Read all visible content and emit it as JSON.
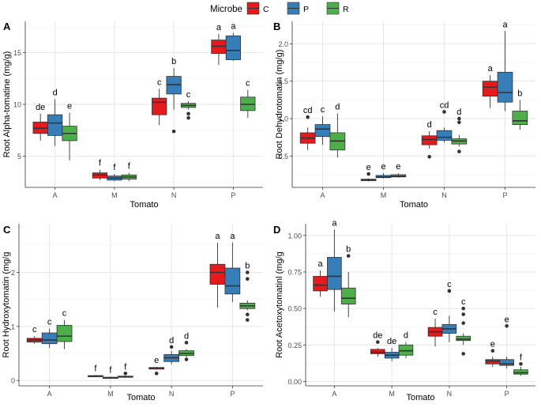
{
  "legend": {
    "title": "Microbe",
    "items": [
      {
        "label": "C",
        "color": "#e41a1c"
      },
      {
        "label": "P",
        "color": "#377eb8"
      },
      {
        "label": "R",
        "color": "#4daf4a"
      }
    ]
  },
  "chart_data": [
    {
      "type": "boxplot",
      "panel": "A",
      "ylabel": "Root Alpha-tomatine (mg/g)",
      "xlabel": "Tomato",
      "categories": [
        "A",
        "M",
        "N",
        "P"
      ],
      "ylim": [
        2.0,
        18.0
      ],
      "yticks": [
        5,
        10,
        15
      ],
      "ytick_labels": [
        "5",
        "10",
        "15"
      ],
      "grid": true,
      "boxes": [
        {
          "category": "A",
          "microbe": "C",
          "whislo": 6.5,
          "q1": 7.2,
          "med": 7.7,
          "q3": 8.3,
          "whishi": 9.1,
          "outliers": [],
          "letter": "de"
        },
        {
          "category": "A",
          "microbe": "P",
          "whislo": 6.0,
          "q1": 7.0,
          "med": 8.2,
          "q3": 9.0,
          "whishi": 10.5,
          "outliers": [],
          "letter": "d"
        },
        {
          "category": "A",
          "microbe": "R",
          "whislo": 4.6,
          "q1": 6.5,
          "med": 7.2,
          "q3": 7.9,
          "whishi": 9.2,
          "outliers": [],
          "letter": "e"
        },
        {
          "category": "M",
          "microbe": "C",
          "whislo": 2.7,
          "q1": 2.9,
          "med": 3.2,
          "q3": 3.4,
          "whishi": 3.7,
          "outliers": [],
          "letter": "f"
        },
        {
          "category": "M",
          "microbe": "P",
          "whislo": 2.6,
          "q1": 2.7,
          "med": 2.9,
          "q3": 3.1,
          "whishi": 3.3,
          "outliers": [],
          "letter": "f"
        },
        {
          "category": "M",
          "microbe": "R",
          "whislo": 2.6,
          "q1": 2.8,
          "med": 3.0,
          "q3": 3.2,
          "whishi": 3.4,
          "outliers": [],
          "letter": "f"
        },
        {
          "category": "N",
          "microbe": "C",
          "whislo": 8.0,
          "q1": 9.0,
          "med": 10.2,
          "q3": 10.6,
          "whishi": 11.5,
          "outliers": [],
          "letter": "c"
        },
        {
          "category": "N",
          "microbe": "P",
          "whislo": 9.5,
          "q1": 11.0,
          "med": 11.9,
          "q3": 12.7,
          "whishi": 13.5,
          "outliers": [
            7.4
          ],
          "letter": "b"
        },
        {
          "category": "N",
          "microbe": "R",
          "whislo": 9.5,
          "q1": 9.7,
          "med": 9.9,
          "q3": 10.1,
          "whishi": 10.3,
          "outliers": [
            9.1,
            8.7
          ],
          "letter": "c"
        },
        {
          "category": "P",
          "microbe": "C",
          "whislo": 13.8,
          "q1": 14.9,
          "med": 15.6,
          "q3": 16.2,
          "whishi": 16.8,
          "outliers": [],
          "letter": "a"
        },
        {
          "category": "P",
          "microbe": "P",
          "whislo": 14.2,
          "q1": 14.3,
          "med": 15.2,
          "q3": 16.6,
          "whishi": 16.9,
          "outliers": [],
          "letter": "a"
        },
        {
          "category": "P",
          "microbe": "R",
          "whislo": 8.7,
          "q1": 9.4,
          "med": 10.0,
          "q3": 10.7,
          "whishi": 11.4,
          "outliers": [],
          "letter": "c"
        }
      ]
    },
    {
      "type": "boxplot",
      "panel": "B",
      "ylabel": "Root Dehydrotomatin (mg/g)",
      "xlabel": "Tomato",
      "categories": [
        "A",
        "M",
        "N",
        "P"
      ],
      "ylim": [
        0.08,
        2.3
      ],
      "yticks": [
        0.5,
        1.0,
        1.5,
        2.0
      ],
      "ytick_labels": [
        "0.5",
        "1.0",
        "1.5",
        "2.0"
      ],
      "grid": true,
      "boxes": [
        {
          "category": "A",
          "microbe": "C",
          "whislo": 0.58,
          "q1": 0.67,
          "med": 0.74,
          "q3": 0.81,
          "whishi": 0.88,
          "outliers": [
            1.02
          ],
          "letter": "cd"
        },
        {
          "category": "A",
          "microbe": "P",
          "whislo": 0.65,
          "q1": 0.76,
          "med": 0.86,
          "q3": 0.92,
          "whishi": 1.03,
          "outliers": [],
          "letter": "c"
        },
        {
          "category": "A",
          "microbe": "R",
          "whislo": 0.48,
          "q1": 0.58,
          "med": 0.7,
          "q3": 0.81,
          "whishi": 1.07,
          "outliers": [],
          "letter": "d"
        },
        {
          "category": "M",
          "microbe": "C",
          "whislo": 0.16,
          "q1": 0.17,
          "med": 0.18,
          "q3": 0.19,
          "whishi": 0.2,
          "outliers": [
            0.26
          ],
          "letter": "e"
        },
        {
          "category": "M",
          "microbe": "P",
          "whislo": 0.2,
          "q1": 0.21,
          "med": 0.22,
          "q3": 0.24,
          "whishi": 0.27,
          "outliers": [],
          "letter": "e"
        },
        {
          "category": "M",
          "microbe": "R",
          "whislo": 0.21,
          "q1": 0.22,
          "med": 0.23,
          "q3": 0.25,
          "whishi": 0.27,
          "outliers": [],
          "letter": "e"
        },
        {
          "category": "N",
          "microbe": "C",
          "whislo": 0.6,
          "q1": 0.65,
          "med": 0.72,
          "q3": 0.77,
          "whishi": 0.83,
          "outliers": [
            0.49
          ],
          "letter": "d"
        },
        {
          "category": "N",
          "microbe": "P",
          "whislo": 0.68,
          "q1": 0.71,
          "med": 0.75,
          "q3": 0.84,
          "whishi": 0.88,
          "outliers": [
            1.09
          ],
          "letter": "cd"
        },
        {
          "category": "N",
          "microbe": "R",
          "whislo": 0.63,
          "q1": 0.66,
          "med": 0.7,
          "q3": 0.73,
          "whishi": 0.78,
          "outliers": [
            1.0,
            0.95,
            0.56
          ],
          "letter": "d"
        },
        {
          "category": "P",
          "microbe": "C",
          "whislo": 1.14,
          "q1": 1.3,
          "med": 1.42,
          "q3": 1.5,
          "whishi": 1.58,
          "outliers": [],
          "letter": "a"
        },
        {
          "category": "P",
          "microbe": "P",
          "whislo": 1.1,
          "q1": 1.22,
          "med": 1.35,
          "q3": 1.62,
          "whishi": 2.17,
          "outliers": [],
          "letter": "a"
        },
        {
          "category": "P",
          "microbe": "R",
          "whislo": 0.85,
          "q1": 0.92,
          "med": 0.97,
          "q3": 1.1,
          "whishi": 1.25,
          "outliers": [],
          "letter": "b"
        }
      ]
    },
    {
      "type": "boxplot",
      "panel": "C",
      "ylabel": "Root Hydroxytomatin (mg/g",
      "xlabel": "Tomato",
      "categories": [
        "A",
        "M",
        "N",
        "P"
      ],
      "ylim": [
        -0.1,
        2.9
      ],
      "yticks": [
        0,
        1,
        2
      ],
      "ytick_labels": [
        "0",
        "1",
        "2"
      ],
      "grid": true,
      "boxes": [
        {
          "category": "A",
          "microbe": "C",
          "whislo": 0.68,
          "q1": 0.71,
          "med": 0.75,
          "q3": 0.78,
          "whishi": 0.82,
          "outliers": [],
          "letter": "c"
        },
        {
          "category": "A",
          "microbe": "P",
          "whislo": 0.6,
          "q1": 0.68,
          "med": 0.75,
          "q3": 0.88,
          "whishi": 0.96,
          "outliers": [],
          "letter": "c"
        },
        {
          "category": "A",
          "microbe": "R",
          "whislo": 0.58,
          "q1": 0.72,
          "med": 0.82,
          "q3": 1.02,
          "whishi": 1.12,
          "outliers": [],
          "letter": "c"
        },
        {
          "category": "M",
          "microbe": "C",
          "whislo": 0.06,
          "q1": 0.07,
          "med": 0.08,
          "q3": 0.09,
          "whishi": 0.1,
          "outliers": [],
          "letter": "f"
        },
        {
          "category": "M",
          "microbe": "P",
          "whislo": 0.03,
          "q1": 0.04,
          "med": 0.05,
          "q3": 0.06,
          "whishi": 0.07,
          "outliers": [],
          "letter": "f"
        },
        {
          "category": "M",
          "microbe": "R",
          "whislo": 0.05,
          "q1": 0.06,
          "med": 0.07,
          "q3": 0.08,
          "whishi": 0.09,
          "outliers": [
            0.13
          ],
          "letter": "f"
        },
        {
          "category": "N",
          "microbe": "C",
          "whislo": 0.2,
          "q1": 0.21,
          "med": 0.23,
          "q3": 0.24,
          "whishi": 0.25,
          "outliers": [
            0.13
          ],
          "letter": "e"
        },
        {
          "category": "N",
          "microbe": "P",
          "whislo": 0.3,
          "q1": 0.35,
          "med": 0.42,
          "q3": 0.48,
          "whishi": 0.55,
          "outliers": [
            0.62
          ],
          "letter": "d"
        },
        {
          "category": "N",
          "microbe": "R",
          "whislo": 0.43,
          "q1": 0.46,
          "med": 0.5,
          "q3": 0.55,
          "whishi": 0.58,
          "outliers": [
            0.7,
            0.39
          ],
          "letter": "d"
        },
        {
          "category": "P",
          "microbe": "C",
          "whislo": 1.35,
          "q1": 1.78,
          "med": 2.0,
          "q3": 2.15,
          "whishi": 2.55,
          "outliers": [],
          "letter": "a"
        },
        {
          "category": "P",
          "microbe": "P",
          "whislo": 1.45,
          "q1": 1.6,
          "med": 1.75,
          "q3": 2.08,
          "whishi": 2.55,
          "outliers": [],
          "letter": "a"
        },
        {
          "category": "P",
          "microbe": "R",
          "whislo": 1.3,
          "q1": 1.33,
          "med": 1.38,
          "q3": 1.43,
          "whishi": 1.48,
          "outliers": [
            2.0,
            1.88,
            1.22,
            1.12
          ],
          "letter": "b"
        }
      ]
    },
    {
      "type": "boxplot",
      "panel": "D",
      "ylabel": "Root Acetoxytomatinl (mg/g",
      "xlabel": "Tomato",
      "categories": [
        "A",
        "M",
        "N",
        "P"
      ],
      "ylim": [
        -0.03,
        1.08
      ],
      "yticks": [
        0.0,
        0.25,
        0.5,
        0.75,
        1.0
      ],
      "ytick_labels": [
        "0.00",
        "0.25",
        "0.50",
        "0.75",
        "1.00"
      ],
      "grid": true,
      "boxes": [
        {
          "category": "A",
          "microbe": "C",
          "whislo": 0.58,
          "q1": 0.62,
          "med": 0.66,
          "q3": 0.72,
          "whishi": 0.76,
          "outliers": [],
          "letter": "a"
        },
        {
          "category": "A",
          "microbe": "P",
          "whislo": 0.48,
          "q1": 0.63,
          "med": 0.72,
          "q3": 0.85,
          "whishi": 1.04,
          "outliers": [],
          "letter": "a"
        },
        {
          "category": "A",
          "microbe": "R",
          "whislo": 0.44,
          "q1": 0.53,
          "med": 0.57,
          "q3": 0.64,
          "whishi": 0.75,
          "outliers": [
            0.86
          ],
          "letter": "b"
        },
        {
          "category": "M",
          "microbe": "C",
          "whislo": 0.17,
          "q1": 0.19,
          "med": 0.2,
          "q3": 0.22,
          "whishi": 0.23,
          "outliers": [
            0.27
          ],
          "letter": "de"
        },
        {
          "category": "M",
          "microbe": "P",
          "whislo": 0.14,
          "q1": 0.16,
          "med": 0.18,
          "q3": 0.2,
          "whishi": 0.23,
          "outliers": [],
          "letter": "de"
        },
        {
          "category": "M",
          "microbe": "R",
          "whislo": 0.16,
          "q1": 0.18,
          "med": 0.21,
          "q3": 0.25,
          "whishi": 0.27,
          "outliers": [],
          "letter": "d"
        },
        {
          "category": "N",
          "microbe": "C",
          "whislo": 0.24,
          "q1": 0.31,
          "med": 0.34,
          "q3": 0.37,
          "whishi": 0.43,
          "outliers": [],
          "letter": "c"
        },
        {
          "category": "N",
          "microbe": "P",
          "whislo": 0.27,
          "q1": 0.33,
          "med": 0.36,
          "q3": 0.39,
          "whishi": 0.45,
          "outliers": [
            0.62
          ],
          "letter": "c"
        },
        {
          "category": "N",
          "microbe": "R",
          "whislo": 0.25,
          "q1": 0.28,
          "med": 0.29,
          "q3": 0.31,
          "whishi": 0.33,
          "outliers": [
            0.5,
            0.46,
            0.4,
            0.19
          ],
          "letter": "c"
        },
        {
          "category": "P",
          "microbe": "C",
          "whislo": 0.1,
          "q1": 0.12,
          "med": 0.14,
          "q3": 0.15,
          "whishi": 0.17,
          "outliers": [
            0.21
          ],
          "letter": "e"
        },
        {
          "category": "P",
          "microbe": "P",
          "whislo": 0.09,
          "q1": 0.11,
          "med": 0.12,
          "q3": 0.15,
          "whishi": 0.17,
          "outliers": [
            0.38
          ],
          "letter": "e"
        },
        {
          "category": "P",
          "microbe": "R",
          "whislo": 0.04,
          "q1": 0.05,
          "med": 0.06,
          "q3": 0.08,
          "whishi": 0.1,
          "outliers": [
            0.12
          ],
          "letter": "f"
        }
      ]
    }
  ]
}
